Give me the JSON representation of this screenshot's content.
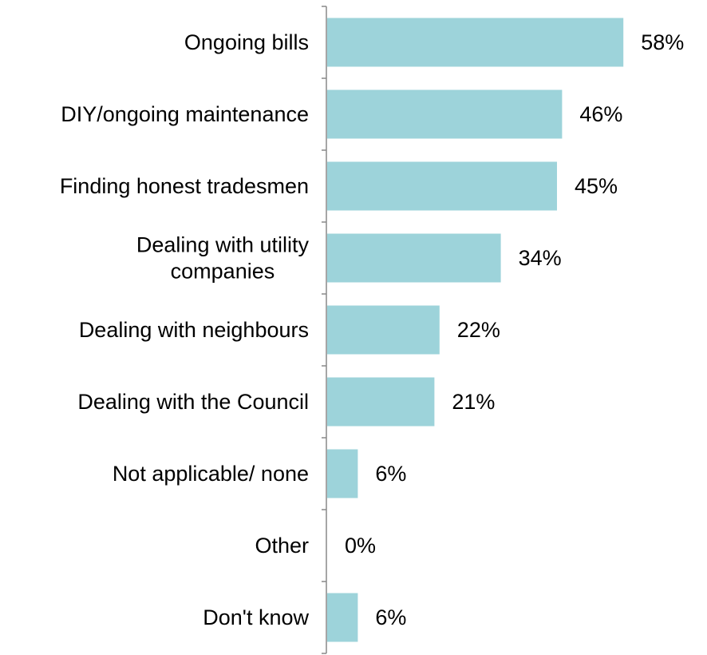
{
  "chart_data": {
    "type": "bar",
    "orientation": "horizontal",
    "title": "",
    "xlabel": "",
    "ylabel": "",
    "categories": [
      [
        "Ongoing bills"
      ],
      [
        "DIY/ongoing maintenance"
      ],
      [
        "Finding honest tradesmen"
      ],
      [
        "Dealing with utility",
        "companies"
      ],
      [
        "Dealing with neighbours"
      ],
      [
        "Dealing with the Council"
      ],
      [
        "Not applicable/ none"
      ],
      [
        "Other"
      ],
      [
        "Don't know"
      ]
    ],
    "values": [
      58,
      46,
      45,
      34,
      22,
      21,
      6,
      0,
      6
    ],
    "value_labels": [
      "58%",
      "46%",
      "45%",
      "34%",
      "22%",
      "21%",
      "6%",
      "0%",
      "6%"
    ],
    "unit": "%",
    "bar_color": "#9DD3DA",
    "axis_color": "#888888",
    "grid": false,
    "legend": "none"
  }
}
